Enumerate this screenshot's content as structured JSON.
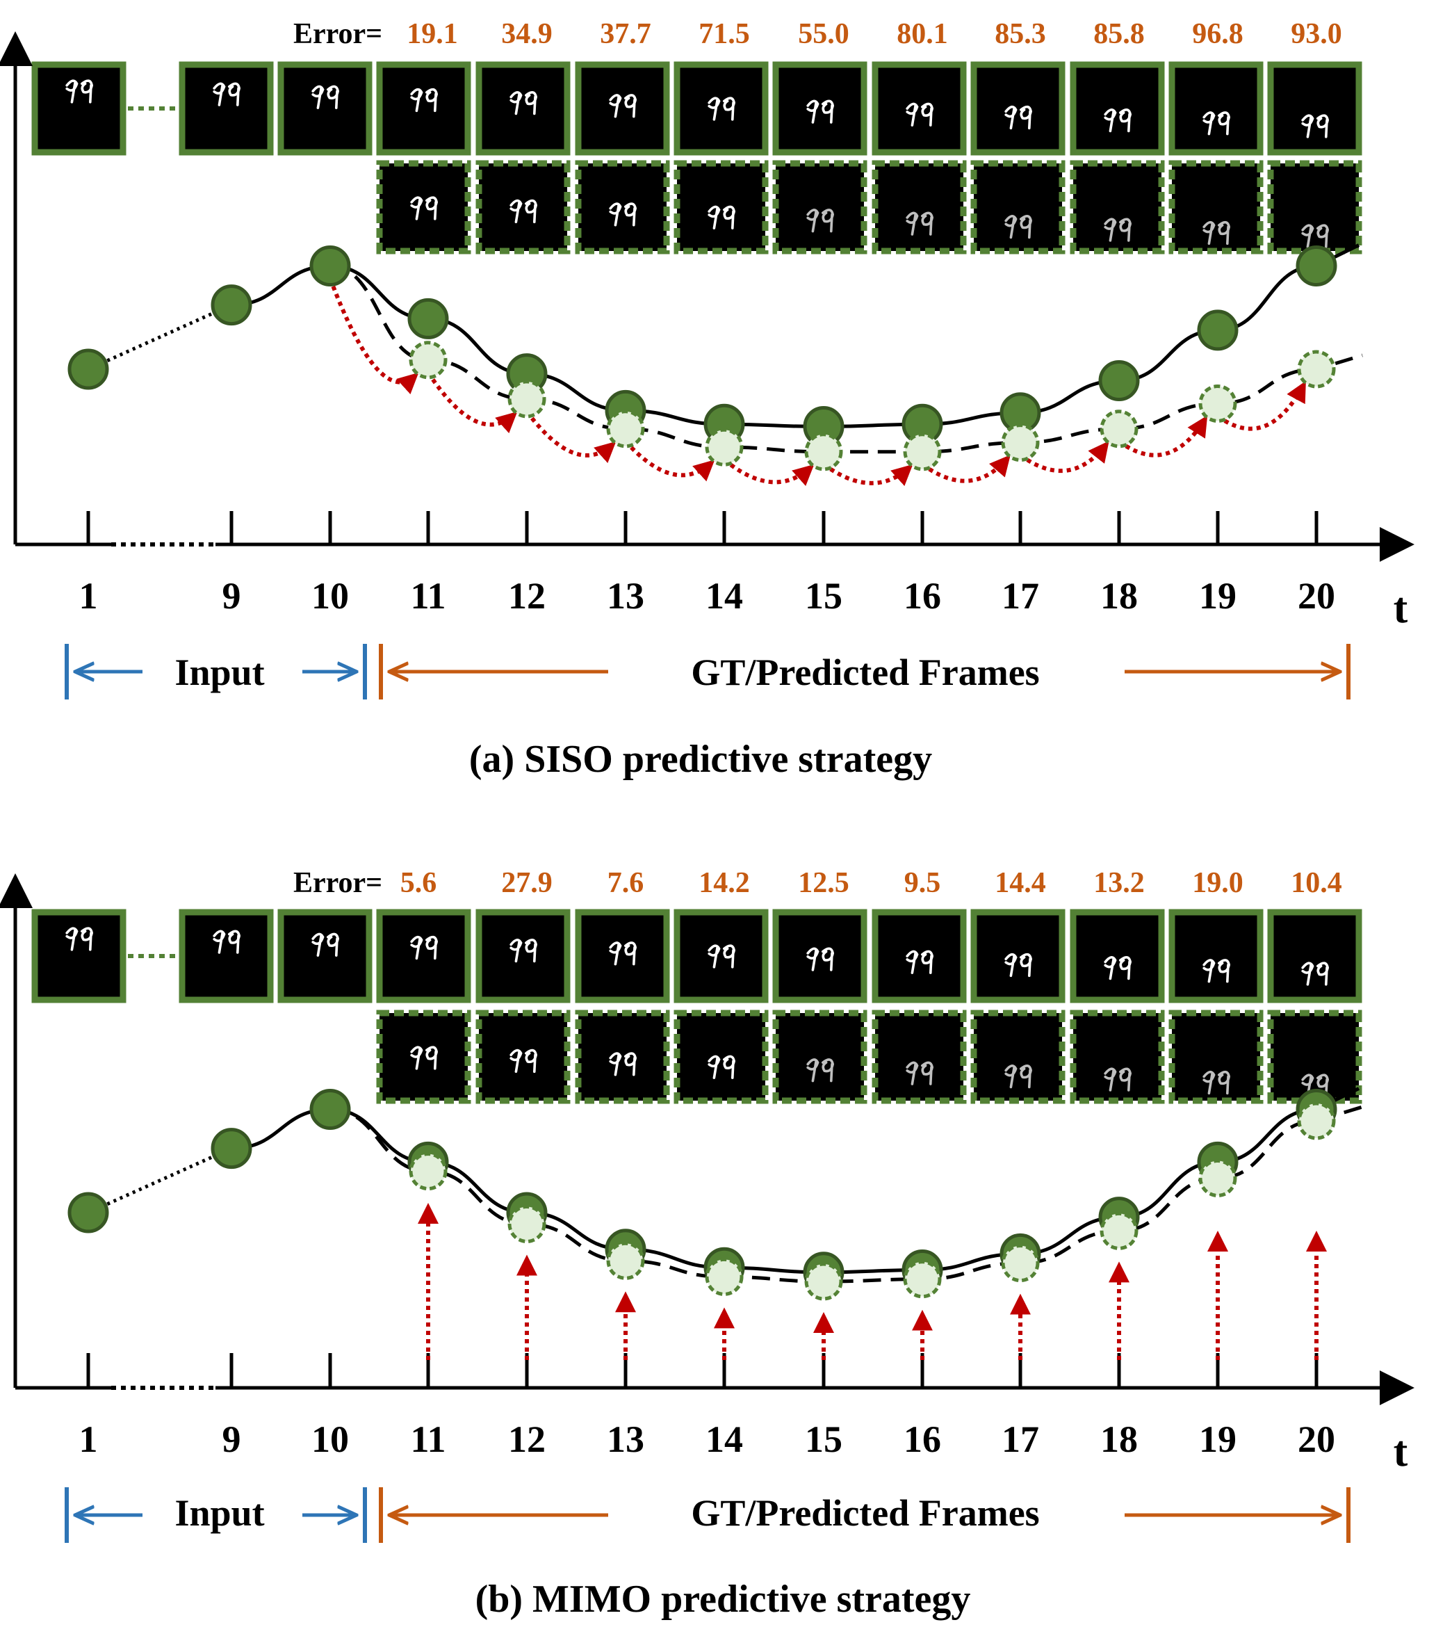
{
  "panels": [
    {
      "id": "siso",
      "caption": "(a) SISO predictive strategy",
      "error_label": "Error=",
      "errors": [
        "19.1",
        "34.9",
        "37.7",
        "71.5",
        "55.0",
        "80.1",
        "85.3",
        "85.8",
        "96.8",
        "93.0"
      ],
      "ticks": [
        "1",
        "9",
        "10",
        "11",
        "12",
        "13",
        "14",
        "15",
        "16",
        "17",
        "18",
        "19",
        "20"
      ],
      "t_label": "t",
      "input_label": "Input",
      "frames_label": "GT/Predicted Frames",
      "gt_curve": [
        40,
        68,
        85,
        62,
        38,
        22,
        16,
        15,
        16,
        21,
        35,
        57,
        85
      ],
      "pred_curve": [
        44,
        27,
        14,
        6,
        4,
        4,
        8,
        14,
        25,
        40
      ],
      "arrow_style": "chain"
    },
    {
      "id": "mimo",
      "caption": "(b) MIMO predictive strategy",
      "error_label": "Error=",
      "errors": [
        "5.6",
        "27.9",
        "7.6",
        "14.2",
        "12.5",
        "9.5",
        "14.4",
        "13.2",
        "19.0",
        "10.4"
      ],
      "ticks": [
        "1",
        "9",
        "10",
        "11",
        "12",
        "13",
        "14",
        "15",
        "16",
        "17",
        "18",
        "19",
        "20"
      ],
      "t_label": "t",
      "input_label": "Input",
      "frames_label": "GT/Predicted Frames",
      "gt_curve": [
        40,
        68,
        85,
        62,
        40,
        24,
        16,
        14,
        15,
        22,
        38,
        62,
        85
      ],
      "pred_curve": [
        58,
        35,
        19,
        12,
        10,
        11,
        18,
        32,
        55,
        80
      ],
      "arrow_style": "vertical"
    }
  ],
  "colors": {
    "error_value": "#c55a11",
    "frame_border": "#538135",
    "gt_dot": "#548235",
    "pred_dot": "#e2efda",
    "red_arrow": "#c00000",
    "input_arrow": "#2e75b6",
    "frames_arrow": "#c55a11"
  }
}
